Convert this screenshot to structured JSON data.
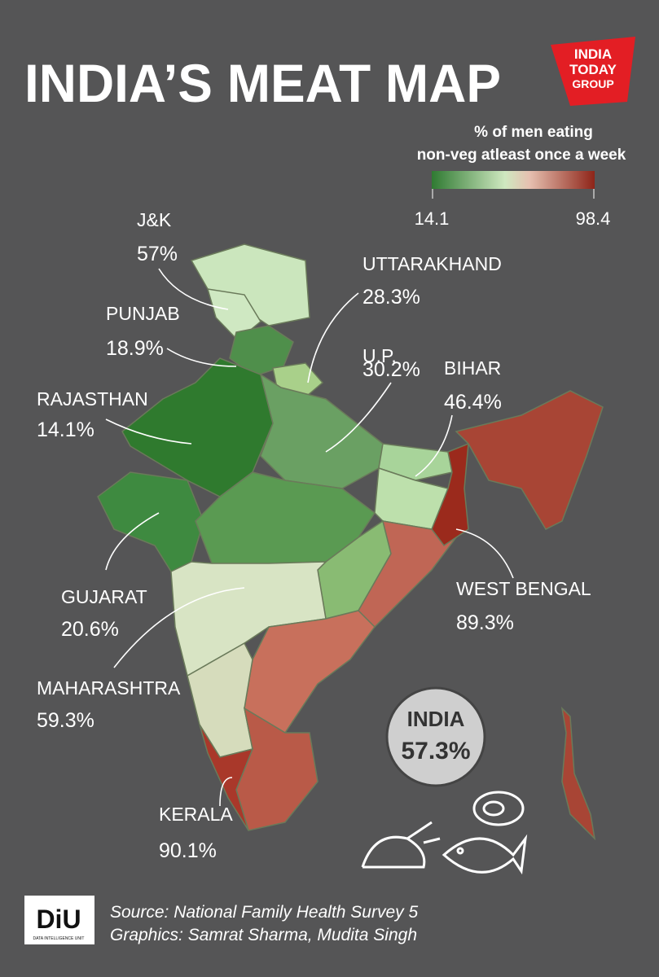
{
  "header": {
    "title": "INDIA’S MEAT MAP",
    "logo": [
      "INDIA",
      "TODAY",
      "GROUP"
    ]
  },
  "legend": {
    "title": [
      "% of men eating",
      "non-veg atleast once a week"
    ],
    "min": "14.1",
    "max": "98.4"
  },
  "states": [
    {
      "name": "J&K",
      "value": "57%"
    },
    {
      "name": "UTTARAKHAND",
      "value": "28.3%"
    },
    {
      "name": "PUNJAB",
      "value": "18.9%"
    },
    {
      "name": "U.P.",
      "value": "30.2%"
    },
    {
      "name": "BIHAR",
      "value": "46.4%"
    },
    {
      "name": "RAJASTHAN",
      "value": "14.1%"
    },
    {
      "name": "GUJARAT",
      "value": "20.6%"
    },
    {
      "name": "WEST BENGAL",
      "value": "89.3%"
    },
    {
      "name": "MAHARASHTRA",
      "value": "59.3%"
    },
    {
      "name": "KERALA",
      "value": "90.1%"
    }
  ],
  "national": {
    "name": "INDIA",
    "value": "57.3%"
  },
  "footer": {
    "logo": "DiU",
    "logo_sub": "DATA INTELLIGENCE UNIT",
    "source": "Source: National Family Health Survey 5",
    "credits": "Graphics: Samrat Sharma, Mudita Singh"
  }
}
